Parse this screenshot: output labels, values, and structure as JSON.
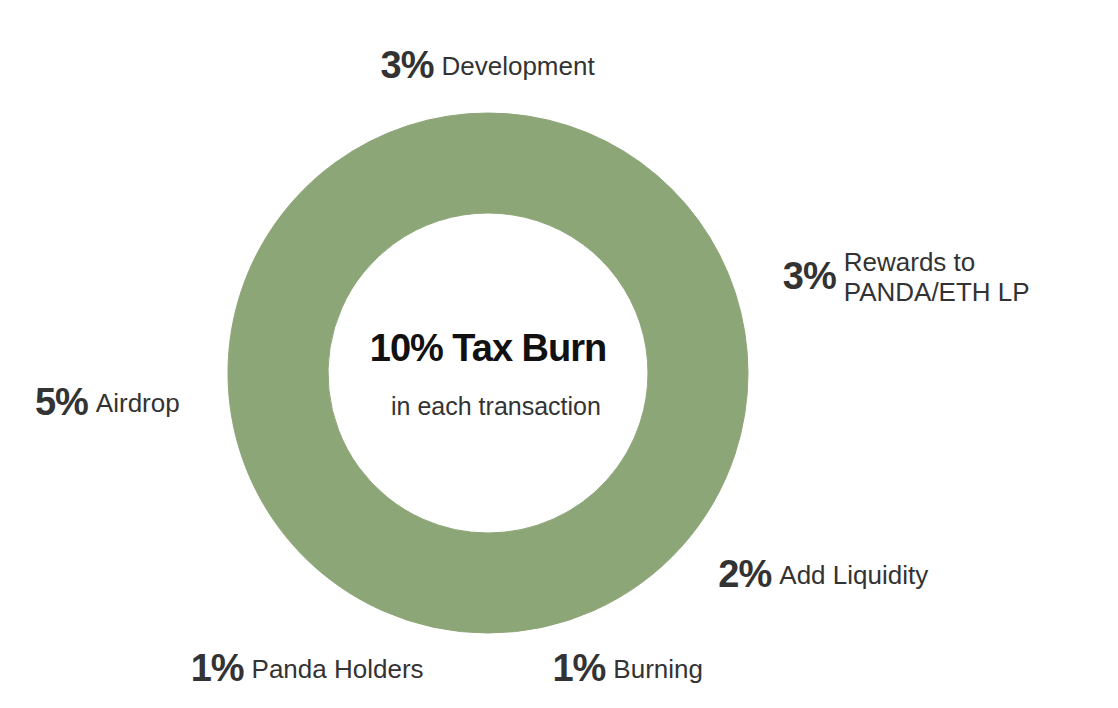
{
  "chart_data": {
    "type": "donut",
    "title": "10% Tax Burn",
    "subtitle": "in each transaction",
    "categories": [
      "Development",
      "Rewards to PANDA/ETH LP",
      "Add Liquidity",
      "Burning",
      "Panda Holders",
      "Airdrop"
    ],
    "values": [
      3,
      3,
      2,
      1,
      1,
      5
    ],
    "value_labels": [
      "3%",
      "3%",
      "2%",
      "1%",
      "1%",
      "5%"
    ],
    "data_labels": true,
    "color": "#8da678"
  }
}
